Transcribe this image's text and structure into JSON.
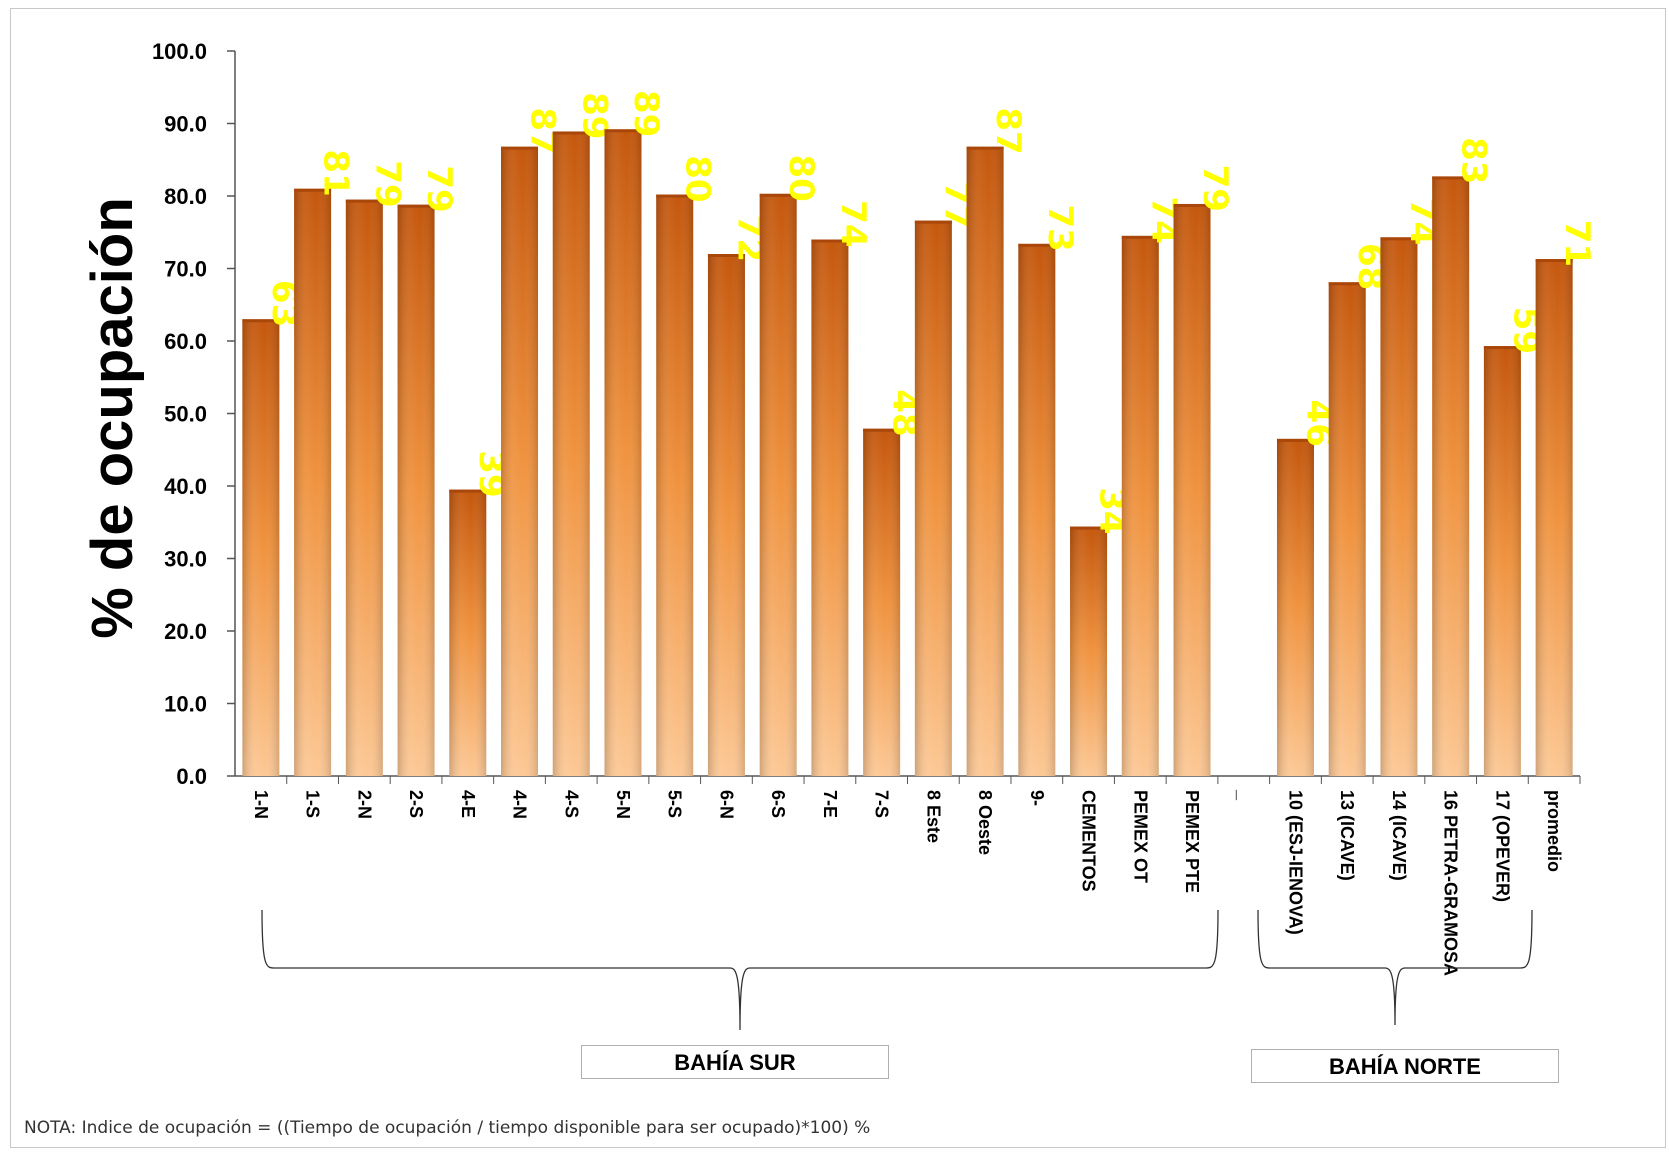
{
  "chart_data": {
    "type": "bar",
    "ylabel": "% de ocupación",
    "ylim": [
      0,
      100
    ],
    "yticks": [
      "0.0",
      "10.0",
      "20.0",
      "30.0",
      "40.0",
      "50.0",
      "60.0",
      "70.0",
      "80.0",
      "90.0",
      "100.0"
    ],
    "categories": [
      "1-N",
      "1-S",
      "2-N",
      "2-S",
      "4-E",
      "4-N",
      "4-S",
      "5-N",
      "5-S",
      "6-N",
      "6-S",
      "7-E",
      "7-S",
      "8 Este",
      "8 Oeste",
      "9-",
      "CEMENTOS",
      "PEMEX OT",
      "PEMEX PTE",
      "_",
      "10 (ESJ-IENOVA)",
      "13 (ICAVE)",
      "14  (ICAVE)",
      "16 PETRA-GRAMOSA",
      "17 (OPEVER)",
      "promedio"
    ],
    "values": [
      63,
      81,
      79.5,
      78.8,
      39.5,
      86.8,
      88.9,
      89.2,
      80.2,
      72,
      80.3,
      74,
      47.9,
      76.6,
      86.8,
      73.4,
      34.4,
      74.5,
      78.9,
      null,
      46.5,
      68.1,
      74.3,
      82.7,
      59.3,
      71.3
    ],
    "data_labels": [
      "63",
      "81",
      "79",
      "79",
      "39",
      "87",
      "89",
      "89",
      "80",
      "72",
      "80",
      "74",
      "48",
      "77",
      "87",
      "73",
      "34",
      "74",
      "79",
      "",
      "46",
      "68",
      "74",
      "83",
      "59",
      "71"
    ],
    "grid": false,
    "legend": "none"
  },
  "groups": [
    {
      "label": "BAHÍA SUR"
    },
    {
      "label": "BAHÍA NORTE"
    }
  ],
  "note": "NOTA: Indice de ocupación = ((Tiempo de ocupación / tiempo disponible para ser ocupado)*100) %",
  "colors": {
    "bar_top": "#c4570d",
    "bar_mid": "#f0933f",
    "bar_bottom": "#fcc895",
    "data_label": "#ffff00"
  }
}
